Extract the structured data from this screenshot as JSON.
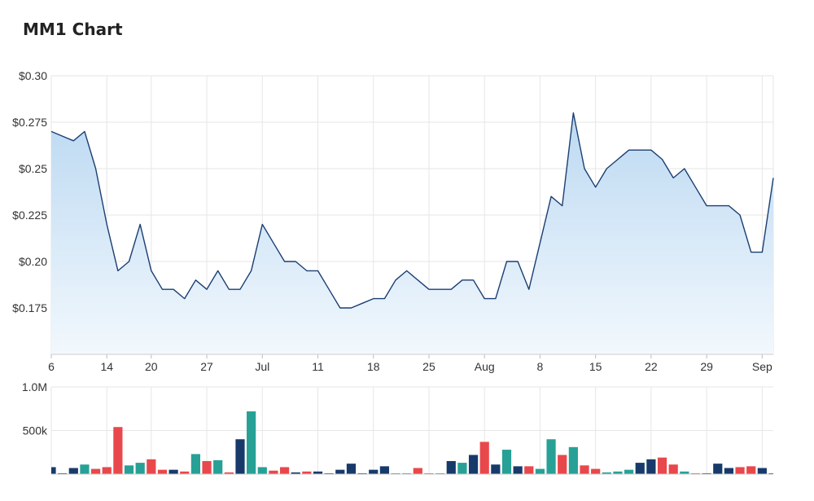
{
  "title": "MM1 Chart",
  "colors": {
    "line": "#1a3e72",
    "area_top": "#bcd9f2",
    "area_bottom": "#f2f8fd",
    "grid": "#e6e6e6",
    "vol_navy": "#173a6b",
    "vol_teal": "#27a196",
    "vol_red": "#e8484b"
  },
  "chart_data": [
    {
      "type": "area",
      "series": [
        {
          "values": [
            0.27,
            0.2675,
            0.265,
            0.27,
            0.25,
            0.22,
            0.195,
            0.2,
            0.22,
            0.195,
            0.185,
            0.185,
            0.18,
            0.19,
            0.185,
            0.195,
            0.185,
            0.185,
            0.195,
            0.22,
            0.21,
            0.2,
            0.2,
            0.195,
            0.195,
            0.185,
            0.175,
            0.175,
            0.1775,
            0.18,
            0.18,
            0.19,
            0.195,
            0.19,
            0.185,
            0.185,
            0.185,
            0.19,
            0.19,
            0.18,
            0.18,
            0.2,
            0.2,
            0.185,
            0.21,
            0.235,
            0.23,
            0.28,
            0.25,
            0.24,
            0.25,
            0.255,
            0.26,
            0.26,
            0.26,
            0.255,
            0.245,
            0.25,
            0.24,
            0.23,
            0.23,
            0.23,
            0.225,
            0.205,
            0.205,
            0.245
          ]
        }
      ],
      "ylim": [
        0.15,
        0.3
      ],
      "y_ticks": [
        {
          "value": 0.3,
          "label": "$0.30"
        },
        {
          "value": 0.275,
          "label": "$0.275"
        },
        {
          "value": 0.25,
          "label": "$0.25"
        },
        {
          "value": 0.225,
          "label": "$0.225"
        },
        {
          "value": 0.2,
          "label": "$0.20"
        },
        {
          "value": 0.175,
          "label": "$0.175"
        }
      ],
      "x_ticks": [
        {
          "index": 0,
          "label": "6"
        },
        {
          "index": 5,
          "label": "14"
        },
        {
          "index": 9,
          "label": "20"
        },
        {
          "index": 14,
          "label": "27"
        },
        {
          "index": 19,
          "label": "Jul"
        },
        {
          "index": 24,
          "label": "11"
        },
        {
          "index": 29,
          "label": "18"
        },
        {
          "index": 34,
          "label": "25"
        },
        {
          "index": 39,
          "label": "Aug"
        },
        {
          "index": 44,
          "label": "8"
        },
        {
          "index": 49,
          "label": "15"
        },
        {
          "index": 54,
          "label": "22"
        },
        {
          "index": 59,
          "label": "29"
        },
        {
          "index": 64,
          "label": "Sep"
        }
      ],
      "grid": true
    },
    {
      "type": "bar",
      "ylim": [
        0,
        1000000
      ],
      "y_ticks": [
        {
          "value": 1000000,
          "label": "1.0M"
        },
        {
          "value": 500000,
          "label": "500k"
        }
      ],
      "values": [
        80000,
        10000,
        70000,
        110000,
        60000,
        80000,
        540000,
        100000,
        130000,
        170000,
        50000,
        50000,
        30000,
        230000,
        150000,
        160000,
        20000,
        400000,
        720000,
        80000,
        40000,
        80000,
        20000,
        30000,
        30000,
        10000,
        50000,
        120000,
        10000,
        50000,
        90000,
        10000,
        10000,
        70000,
        10000,
        10000,
        150000,
        130000,
        220000,
        370000,
        110000,
        280000,
        90000,
        90000,
        60000,
        400000,
        220000,
        310000,
        100000,
        60000,
        20000,
        30000,
        50000,
        130000,
        170000,
        190000,
        110000,
        30000,
        10000,
        10000,
        120000,
        70000,
        80000,
        90000,
        70000,
        10000
      ],
      "colors": [
        "navy",
        "navy",
        "navy",
        "teal",
        "red",
        "red",
        "red",
        "teal",
        "teal",
        "red",
        "red",
        "navy",
        "red",
        "teal",
        "red",
        "teal",
        "red",
        "navy",
        "teal",
        "teal",
        "red",
        "red",
        "navy",
        "red",
        "navy",
        "navy",
        "navy",
        "navy",
        "navy",
        "navy",
        "navy",
        "teal",
        "teal",
        "red",
        "red",
        "teal",
        "navy",
        "teal",
        "navy",
        "red",
        "navy",
        "teal",
        "navy",
        "red",
        "teal",
        "teal",
        "red",
        "teal",
        "red",
        "red",
        "teal",
        "teal",
        "teal",
        "navy",
        "navy",
        "red",
        "red",
        "teal",
        "red",
        "navy",
        "navy",
        "navy",
        "red",
        "red",
        "navy",
        "navy"
      ]
    }
  ]
}
